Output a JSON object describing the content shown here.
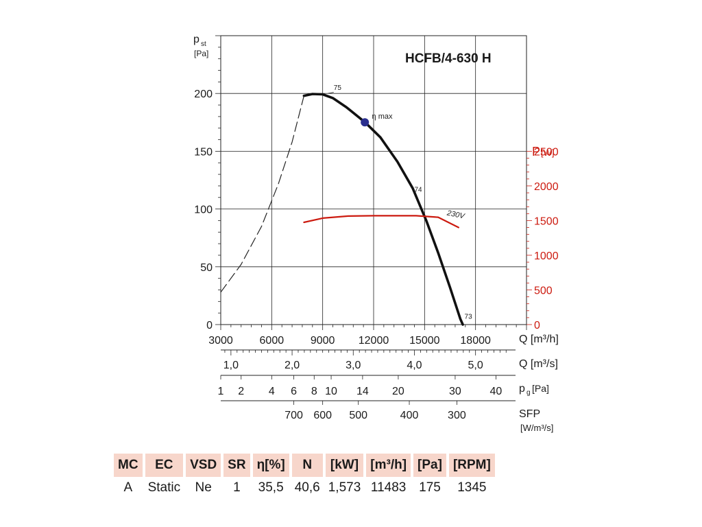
{
  "chart_data": {
    "type": "line",
    "title": "HCFB/4-630 H",
    "y_left": {
      "label": "p",
      "label_sub": "st",
      "unit": "[Pa]",
      "ticks": [
        0,
        50,
        100,
        150,
        200
      ],
      "range": [
        0,
        250
      ]
    },
    "y_right": {
      "label": "P",
      "unit": "[W]",
      "ticks": [
        0,
        500,
        1000,
        1500,
        2000,
        2500
      ],
      "range": [
        0,
        2500
      ]
    },
    "x": {
      "label": "Q [m³/h]",
      "ticks": [
        3000,
        6000,
        9000,
        12000,
        15000,
        18000
      ],
      "range": [
        3000,
        21000
      ],
      "grid": [
        6000,
        9000,
        12000,
        15000,
        18000
      ]
    },
    "secondary_axes": [
      {
        "name": "flow-m3s",
        "label": "Q [m³/s]",
        "ticks": [
          {
            "label": "1,0",
            "at": 3600
          },
          {
            "label": "2,0",
            "at": 7200
          },
          {
            "label": "3,0",
            "at": 10800
          },
          {
            "label": "4,0",
            "at": 14400
          },
          {
            "label": "5,0",
            "at": 18000
          }
        ]
      },
      {
        "name": "pressure-g",
        "label": "p",
        "label_sub": "g",
        "unit": "[Pa]",
        "ticks": [
          {
            "label": "1",
            "at": 3000
          },
          {
            "label": "2",
            "at": 4200
          },
          {
            "label": "4",
            "at": 6000
          },
          {
            "label": "6",
            "at": 7300
          },
          {
            "label": "8",
            "at": 8500
          },
          {
            "label": "10",
            "at": 9500
          },
          {
            "label": "14",
            "at": 11350
          },
          {
            "label": "20",
            "at": 13450
          },
          {
            "label": "30",
            "at": 16800
          },
          {
            "label": "40",
            "at": 19200
          }
        ]
      },
      {
        "name": "sfp",
        "label": "SFP",
        "unit": "[W/m³/s]",
        "ticks": [
          {
            "label": "700",
            "at": 7300
          },
          {
            "label": "600",
            "at": 9000
          },
          {
            "label": "500",
            "at": 11100
          },
          {
            "label": "400",
            "at": 14100
          },
          {
            "label": "300",
            "at": 16900
          }
        ]
      }
    ],
    "series": [
      {
        "name": "pressure-curve",
        "axis": "left",
        "style": "solid",
        "points": [
          [
            7900,
            198
          ],
          [
            8400,
            199.5
          ],
          [
            9000,
            199.2
          ],
          [
            9600,
            196
          ],
          [
            10400,
            188
          ],
          [
            11500,
            175
          ],
          [
            12400,
            162
          ],
          [
            13400,
            141
          ],
          [
            14300,
            118
          ],
          [
            15100,
            90
          ],
          [
            15800,
            62
          ],
          [
            16500,
            32
          ],
          [
            17100,
            5
          ],
          [
            17250,
            0
          ]
        ]
      },
      {
        "name": "pressure-curve-unstable",
        "axis": "left",
        "style": "dashed",
        "points": [
          [
            3000,
            28
          ],
          [
            4200,
            52
          ],
          [
            5400,
            85
          ],
          [
            6400,
            122
          ],
          [
            7200,
            158
          ],
          [
            7900,
            198
          ]
        ]
      },
      {
        "name": "230V",
        "axis": "right",
        "color": "#cc1a0f",
        "points": [
          [
            7900,
            1475
          ],
          [
            9000,
            1535
          ],
          [
            10500,
            1565
          ],
          [
            12000,
            1570
          ],
          [
            14500,
            1570
          ],
          [
            15800,
            1548
          ],
          [
            17000,
            1400
          ]
        ]
      }
    ],
    "annotations": [
      {
        "text": "75",
        "x": 9650,
        "y": 203
      },
      {
        "text": "η max",
        "x": 11900,
        "y": 178,
        "marker": {
          "x": 11483,
          "y": 175
        }
      },
      {
        "text": "74",
        "x": 14400,
        "y": 115
      },
      {
        "text": "73",
        "x": 17350,
        "y": 5
      },
      {
        "text": "230V",
        "x": 16300,
        "y": 1580
      }
    ],
    "grid": true
  },
  "table": {
    "headers": [
      "MC",
      "EC",
      "VSD",
      "SR",
      "η[%]",
      "N",
      "[kW]",
      "[m³/h]",
      "[Pa]",
      "[RPM]"
    ],
    "values": [
      "A",
      "Static",
      "Ne",
      "1",
      "35,5",
      "40,6",
      "1,573",
      "11483",
      "175",
      "1345"
    ]
  },
  "colors": {
    "curve": "#111111",
    "power": "#cc1a0f",
    "marker": "#2b2f8f",
    "header_bg": "#f7d6cb"
  }
}
